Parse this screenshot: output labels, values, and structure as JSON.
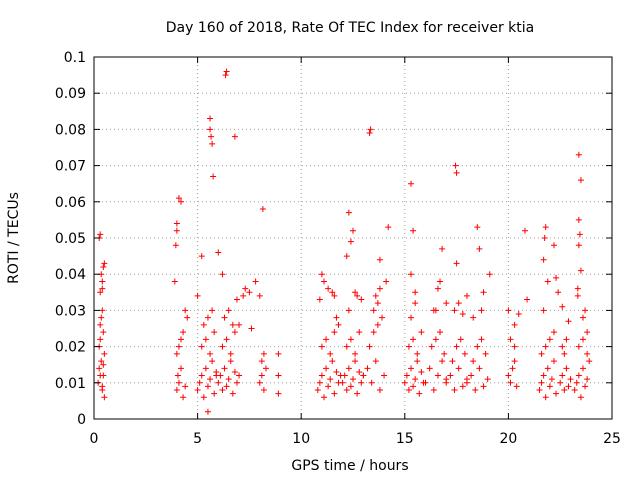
{
  "chart_data": {
    "type": "scatter",
    "title": "Day 160 of 2018, Rate Of TEC Index for receiver ktia",
    "xlabel": "GPS time / hours",
    "ylabel": "ROTI / TECUs",
    "xlim": [
      0,
      25
    ],
    "ylim": [
      0,
      0.1
    ],
    "x_ticks": [
      0,
      5,
      10,
      15,
      20,
      25
    ],
    "y_ticks": [
      0,
      0.01,
      0.02,
      0.03,
      0.04,
      0.05,
      0.06,
      0.07,
      0.08,
      0.09,
      0.1
    ],
    "y_tick_labels": [
      "0",
      "0.01",
      "0.02",
      "0.03",
      "0.04",
      "0.05",
      "0.06",
      "0.07",
      "0.08",
      "0.09",
      "0.1"
    ],
    "grid": true,
    "marker": "+",
    "color": "#ff0000",
    "series": [
      {
        "name": "ROTI",
        "x": [
          0.2,
          0.25,
          0.3,
          0.35,
          0.4,
          0.45,
          0.5,
          0.25,
          0.3,
          0.4,
          0.45,
          0.5,
          0.3,
          0.35,
          0.4,
          0.45,
          0.3,
          0.4,
          0.35,
          0.5,
          0.25,
          0.45,
          0.3,
          0.4,
          4.0,
          4.05,
          4.1,
          4.2,
          4.3,
          4.4,
          4.0,
          4.1,
          4.2,
          4.3,
          4.5,
          3.9,
          3.95,
          4.0,
          4.4,
          4.0,
          4.1,
          4.2,
          5.0,
          5.1,
          5.2,
          5.3,
          5.4,
          5.5,
          5.6,
          5.7,
          5.8,
          5.9,
          5.2,
          5.4,
          5.6,
          5.8,
          5.3,
          5.5,
          5.7,
          5.9,
          5.2,
          5.5,
          5.0,
          5.6,
          5.65,
          5.6,
          5.7,
          5.75,
          6.0,
          6.1,
          6.2,
          6.3,
          6.4,
          6.5,
          6.6,
          6.7,
          6.8,
          6.9,
          7.0,
          6.2,
          6.4,
          6.6,
          6.8,
          7.0,
          6.3,
          6.5,
          6.7,
          6.9,
          6.35,
          6.4,
          6.0,
          6.2,
          6.8,
          7.2,
          7.3,
          7.5,
          7.6,
          7.8,
          8.0,
          8.1,
          8.2,
          8.3,
          8.1,
          8.2,
          8.0,
          8.15,
          8.9,
          8.9,
          8.9,
          10.8,
          10.9,
          11.0,
          11.1,
          11.2,
          11.3,
          11.4,
          11.5,
          11.6,
          11.7,
          11.8,
          11.9,
          11.0,
          11.2,
          11.4,
          11.6,
          11.8,
          10.9,
          11.1,
          11.5,
          11.7,
          11.0,
          11.3,
          11.6,
          12.0,
          12.1,
          12.2,
          12.3,
          12.4,
          12.5,
          12.6,
          12.7,
          12.8,
          12.9,
          13.0,
          12.2,
          12.4,
          12.6,
          12.8,
          12.3,
          12.7,
          12.2,
          12.4,
          12.5,
          12.3,
          12.6,
          12.9,
          13.0,
          13.2,
          13.4,
          13.6,
          13.8,
          14.0,
          13.3,
          13.5,
          13.7,
          13.9,
          13.5,
          13.7,
          13.8,
          13.3,
          13.35,
          13.8,
          14.1,
          14.2,
          13.6,
          15.0,
          15.1,
          15.2,
          15.3,
          15.4,
          15.5,
          15.6,
          15.7,
          15.8,
          15.9,
          15.2,
          15.4,
          15.6,
          15.8,
          15.3,
          15.5,
          15.3,
          15.4,
          15.3,
          15.5,
          16.0,
          16.2,
          16.4,
          16.6,
          16.8,
          17.0,
          16.3,
          16.5,
          16.7,
          16.9,
          16.5,
          16.6,
          16.7,
          16.4,
          16.8,
          17.0,
          17.0,
          17.2,
          17.4,
          17.6,
          17.8,
          18.0,
          17.3,
          17.5,
          17.7,
          17.9,
          17.4,
          17.5,
          17.45,
          17.5,
          17.6,
          17.8,
          18.0,
          18.0,
          18.2,
          18.4,
          18.6,
          18.8,
          19.0,
          18.3,
          18.5,
          18.7,
          18.9,
          18.7,
          18.8,
          18.5,
          18.3,
          19.1,
          18.6,
          20.0,
          20.1,
          20.2,
          20.3,
          20.4,
          20.1,
          20.3,
          20.0,
          20.3,
          20.5,
          20.8,
          20.9,
          21.5,
          21.6,
          21.7,
          21.8,
          21.9,
          22.0,
          22.1,
          22.2,
          22.3,
          21.6,
          21.8,
          22.0,
          22.2,
          21.7,
          21.75,
          21.8,
          21.7,
          21.9,
          22.4,
          22.6,
          22.2,
          22.3,
          22.5,
          22.6,
          22.7,
          22.8,
          22.9,
          23.0,
          22.6,
          22.8,
          22.7,
          22.9,
          23.2,
          23.3,
          23.4,
          23.5,
          23.6,
          23.7,
          23.8,
          23.9,
          23.4,
          23.6,
          23.8,
          23.35,
          23.4,
          23.4,
          23.45,
          23.5,
          23.35,
          23.4,
          23.5,
          23.7,
          23.6,
          23.8
        ],
        "y": [
          0.01,
          0.014,
          0.012,
          0.016,
          0.008,
          0.012,
          0.018,
          0.02,
          0.022,
          0.009,
          0.015,
          0.006,
          0.026,
          0.028,
          0.03,
          0.024,
          0.035,
          0.038,
          0.04,
          0.043,
          0.05,
          0.042,
          0.051,
          0.036,
          0.008,
          0.012,
          0.01,
          0.014,
          0.006,
          0.009,
          0.018,
          0.02,
          0.022,
          0.024,
          0.028,
          0.038,
          0.048,
          0.052,
          0.03,
          0.054,
          0.061,
          0.06,
          0.008,
          0.01,
          0.012,
          0.006,
          0.014,
          0.009,
          0.011,
          0.016,
          0.007,
          0.013,
          0.02,
          0.022,
          0.018,
          0.024,
          0.026,
          0.028,
          0.03,
          0.012,
          0.045,
          0.002,
          0.034,
          0.08,
          0.078,
          0.083,
          0.076,
          0.067,
          0.01,
          0.012,
          0.008,
          0.014,
          0.009,
          0.011,
          0.016,
          0.007,
          0.013,
          0.01,
          0.012,
          0.02,
          0.022,
          0.018,
          0.024,
          0.026,
          0.028,
          0.03,
          0.026,
          0.033,
          0.095,
          0.096,
          0.046,
          0.04,
          0.078,
          0.034,
          0.036,
          0.035,
          0.025,
          0.038,
          0.01,
          0.012,
          0.008,
          0.014,
          0.016,
          0.018,
          0.034,
          0.058,
          0.018,
          0.012,
          0.007,
          0.008,
          0.01,
          0.012,
          0.006,
          0.014,
          0.009,
          0.011,
          0.016,
          0.007,
          0.013,
          0.01,
          0.012,
          0.02,
          0.022,
          0.018,
          0.024,
          0.026,
          0.033,
          0.038,
          0.035,
          0.028,
          0.04,
          0.036,
          0.034,
          0.01,
          0.012,
          0.008,
          0.014,
          0.009,
          0.011,
          0.016,
          0.007,
          0.013,
          0.01,
          0.012,
          0.02,
          0.022,
          0.018,
          0.024,
          0.03,
          0.034,
          0.045,
          0.049,
          0.052,
          0.057,
          0.035,
          0.033,
          0.012,
          0.014,
          0.01,
          0.016,
          0.008,
          0.012,
          0.02,
          0.024,
          0.026,
          0.028,
          0.03,
          0.032,
          0.036,
          0.079,
          0.08,
          0.044,
          0.038,
          0.053,
          0.034,
          0.01,
          0.012,
          0.008,
          0.014,
          0.009,
          0.011,
          0.016,
          0.007,
          0.013,
          0.01,
          0.02,
          0.022,
          0.018,
          0.024,
          0.028,
          0.032,
          0.04,
          0.052,
          0.065,
          0.035,
          0.01,
          0.014,
          0.008,
          0.012,
          0.016,
          0.011,
          0.02,
          0.022,
          0.024,
          0.018,
          0.03,
          0.036,
          0.038,
          0.03,
          0.047,
          0.032,
          0.01,
          0.012,
          0.008,
          0.014,
          0.009,
          0.011,
          0.016,
          0.02,
          0.022,
          0.018,
          0.03,
          0.043,
          0.07,
          0.068,
          0.032,
          0.029,
          0.034,
          0.01,
          0.012,
          0.008,
          0.014,
          0.009,
          0.011,
          0.016,
          0.02,
          0.022,
          0.018,
          0.03,
          0.035,
          0.053,
          0.028,
          0.04,
          0.047,
          0.012,
          0.01,
          0.014,
          0.016,
          0.009,
          0.022,
          0.02,
          0.03,
          0.026,
          0.029,
          0.052,
          0.033,
          0.008,
          0.01,
          0.012,
          0.006,
          0.014,
          0.009,
          0.011,
          0.016,
          0.007,
          0.018,
          0.02,
          0.022,
          0.024,
          0.03,
          0.05,
          0.053,
          0.044,
          0.038,
          0.035,
          0.031,
          0.048,
          0.039,
          0.01,
          0.012,
          0.008,
          0.014,
          0.009,
          0.011,
          0.02,
          0.022,
          0.018,
          0.027,
          0.008,
          0.01,
          0.012,
          0.006,
          0.014,
          0.009,
          0.011,
          0.016,
          0.02,
          0.022,
          0.018,
          0.034,
          0.055,
          0.048,
          0.051,
          0.041,
          0.036,
          0.073,
          0.066,
          0.03,
          0.028,
          0.024
        ]
      }
    ]
  }
}
